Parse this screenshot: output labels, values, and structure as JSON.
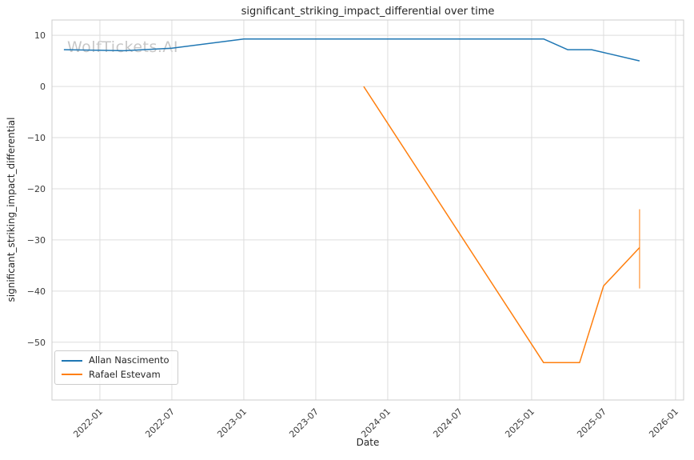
{
  "watermark": "WolfTickets.AI",
  "chart_data": {
    "type": "line",
    "title": "significant_striking_impact_differential over time",
    "xlabel": "Date",
    "ylabel": "significant_striking_impact_differential",
    "grid": true,
    "legend_position": "lower-left",
    "xlim": [
      2021.667,
      2026.056
    ],
    "ylim": [
      -61.3,
      13.0
    ],
    "x_ticks": [
      "2022-01",
      "2022-07",
      "2023-01",
      "2023-07",
      "2024-01",
      "2024-07",
      "2025-01",
      "2025-07",
      "2026-01"
    ],
    "y_ticks": [
      10,
      0,
      -10,
      -20,
      -30,
      -40,
      -50
    ],
    "series": [
      {
        "name": "Allan Nascimento",
        "color": "#1f77b4",
        "points": [
          [
            "2021-10",
            7.2
          ],
          [
            "2022-03",
            7.0
          ],
          [
            "2022-07",
            7.5
          ],
          [
            "2023-01",
            9.3
          ],
          [
            "2023-07",
            9.3
          ],
          [
            "2024-01",
            9.3
          ],
          [
            "2024-07",
            9.3
          ],
          [
            "2025-01",
            9.3
          ],
          [
            "2025-02",
            9.3
          ],
          [
            "2025-04",
            7.2
          ],
          [
            "2025-06",
            7.2
          ],
          [
            "2025-10",
            5.0
          ]
        ]
      },
      {
        "name": "Rafael Estevam",
        "color": "#ff7f0e",
        "points": [
          [
            "2023-11",
            0.0
          ],
          [
            "2025-02",
            -54.0
          ],
          [
            "2025-05",
            -54.0
          ],
          [
            "2025-07",
            -39.0
          ],
          [
            "2025-10",
            -31.5
          ]
        ],
        "error_bar": {
          "x": "2025-10",
          "low": -39.5,
          "high": -24.0
        }
      }
    ]
  }
}
